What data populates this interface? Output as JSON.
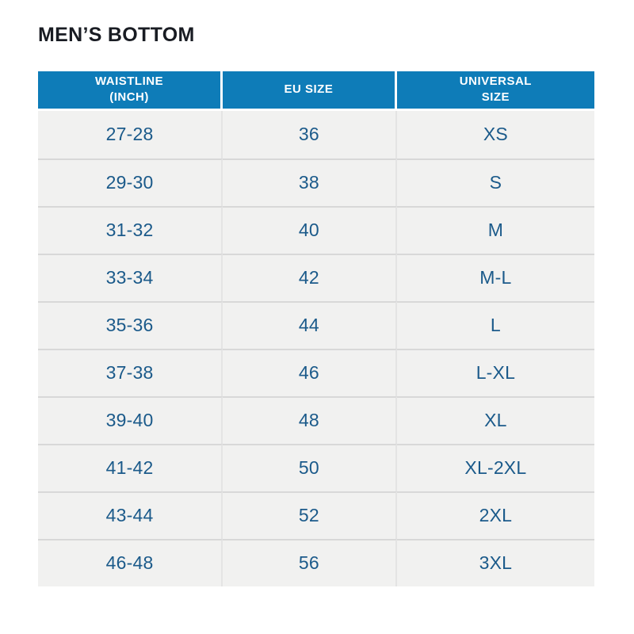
{
  "page": {
    "title": "MEN’S BOTTOM"
  },
  "table": {
    "headers": [
      "WAISTLINE\n(INCH)",
      "EU SIZE",
      "UNIVERSAL\nSIZE"
    ],
    "rows": [
      [
        "27-28",
        "36",
        "XS"
      ],
      [
        "29-30",
        "38",
        "S"
      ],
      [
        "31-32",
        "40",
        "M"
      ],
      [
        "33-34",
        "42",
        "M-L"
      ],
      [
        "35-36",
        "44",
        "L"
      ],
      [
        "37-38",
        "46",
        "L-XL"
      ],
      [
        "39-40",
        "48",
        "XL"
      ],
      [
        "41-42",
        "50",
        "XL-2XL"
      ],
      [
        "43-44",
        "52",
        "2XL"
      ],
      [
        "46-48",
        "56",
        "3XL"
      ]
    ]
  },
  "colors": {
    "header_bg": "#0e7cb8",
    "header_text": "#ffffff",
    "cell_bg": "#f1f1f0",
    "cell_text": "#1b5a8a",
    "title_text": "#191c23",
    "row_separator": "#d8d8d8",
    "column_separator": "#e4e4e4"
  },
  "chart_data": {
    "type": "table",
    "title": "MEN’S BOTTOM",
    "columns": [
      "WAISTLINE (INCH)",
      "EU SIZE",
      "UNIVERSAL SIZE"
    ],
    "rows": [
      [
        "27-28",
        "36",
        "XS"
      ],
      [
        "29-30",
        "38",
        "S"
      ],
      [
        "31-32",
        "40",
        "M"
      ],
      [
        "33-34",
        "42",
        "M-L"
      ],
      [
        "35-36",
        "44",
        "L"
      ],
      [
        "37-38",
        "46",
        "L-XL"
      ],
      [
        "39-40",
        "48",
        "XL"
      ],
      [
        "41-42",
        "50",
        "XL-2XL"
      ],
      [
        "43-44",
        "52",
        "2XL"
      ],
      [
        "46-48",
        "56",
        "3XL"
      ]
    ]
  }
}
